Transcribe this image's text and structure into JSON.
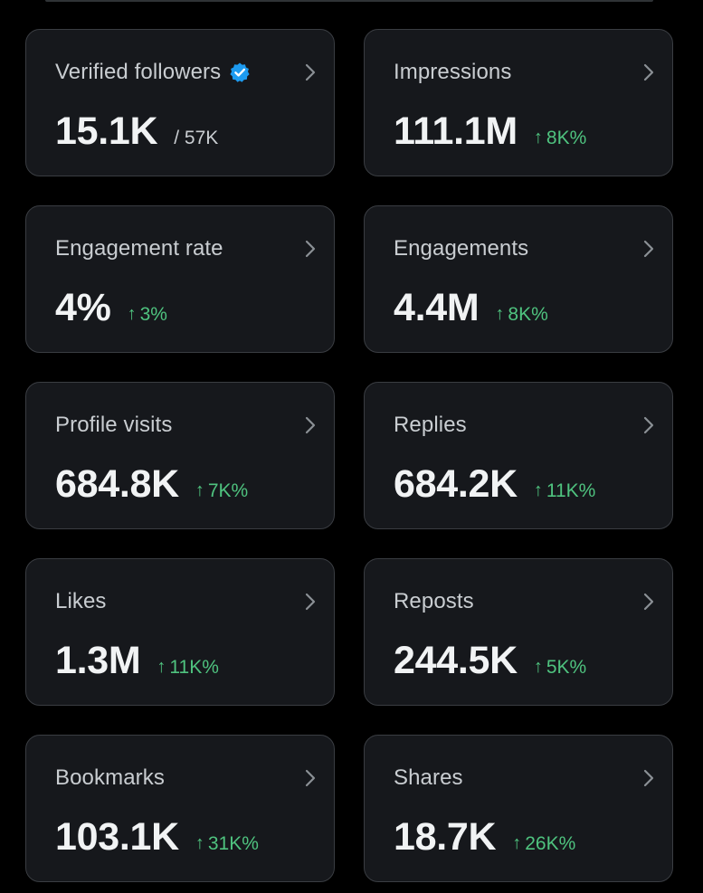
{
  "colors": {
    "background": "#000000",
    "card_background": "#16181c",
    "card_border": "#3a3d42",
    "label": "#c9cdd1",
    "value": "#f1f3f4",
    "positive_change": "#4fc37f",
    "verified_badge": "#1d9bf0"
  },
  "icons": {
    "chevron": "chevron-right-icon",
    "verified": "verified-badge-icon",
    "change": "up-arrow-icon"
  },
  "metrics": [
    {
      "label": "Verified followers",
      "value": "15.1K",
      "sub": "/ 57K"
    },
    {
      "label": "Impressions",
      "value": "111.1M",
      "arrow": "↑",
      "change": "8K%"
    },
    {
      "label": "Engagement rate",
      "value": "4%",
      "arrow": "↑",
      "change": "3%"
    },
    {
      "label": "Engagements",
      "value": "4.4M",
      "arrow": "↑",
      "change": "8K%"
    },
    {
      "label": "Profile visits",
      "value": "684.8K",
      "arrow": "↑",
      "change": "7K%"
    },
    {
      "label": "Replies",
      "value": "684.2K",
      "arrow": "↑",
      "change": "11K%"
    },
    {
      "label": "Likes",
      "value": "1.3M",
      "arrow": "↑",
      "change": "11K%"
    },
    {
      "label": "Reposts",
      "value": "244.5K",
      "arrow": "↑",
      "change": "5K%"
    },
    {
      "label": "Bookmarks",
      "value": "103.1K",
      "arrow": "↑",
      "change": "31K%"
    },
    {
      "label": "Shares",
      "value": "18.7K",
      "arrow": "↑",
      "change": "26K%"
    }
  ]
}
